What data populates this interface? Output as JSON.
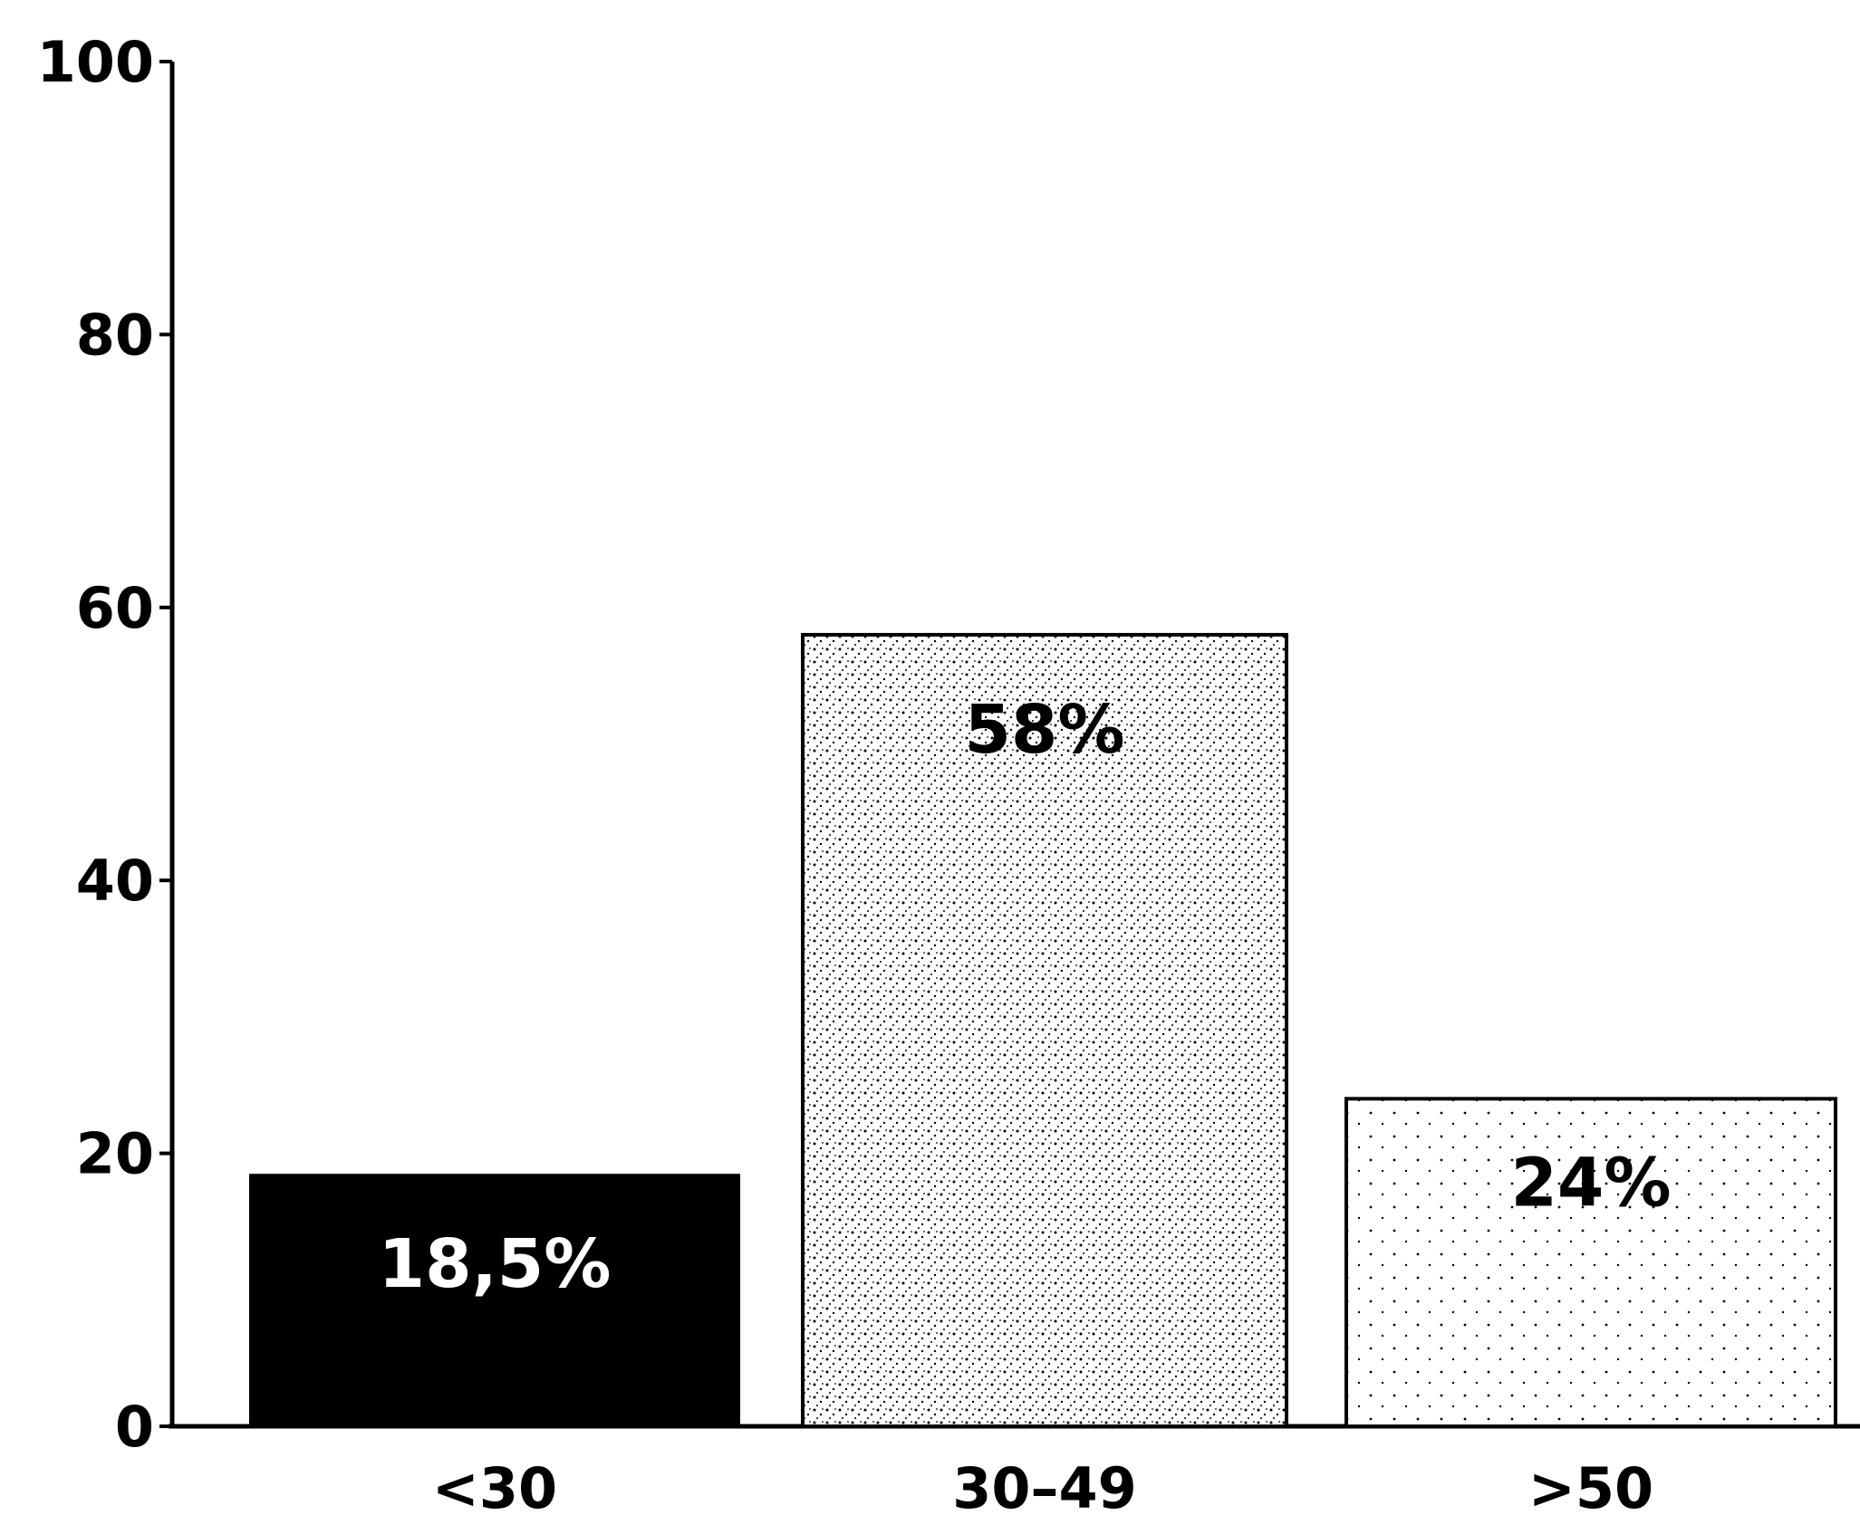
{
  "chart_data": {
    "type": "bar",
    "categories": [
      "<30",
      "30–49",
      ">50"
    ],
    "values": [
      18.5,
      58,
      24
    ],
    "data_labels": [
      "18,5%",
      "58%",
      "24%"
    ],
    "ylim": [
      0,
      100
    ],
    "yticks": [
      0,
      20,
      40,
      60,
      80,
      100
    ],
    "title": "",
    "xlabel": "",
    "ylabel": "",
    "grid": false,
    "bar_styles": [
      "solid-black",
      "dense-stipple",
      "light-stipple"
    ]
  }
}
